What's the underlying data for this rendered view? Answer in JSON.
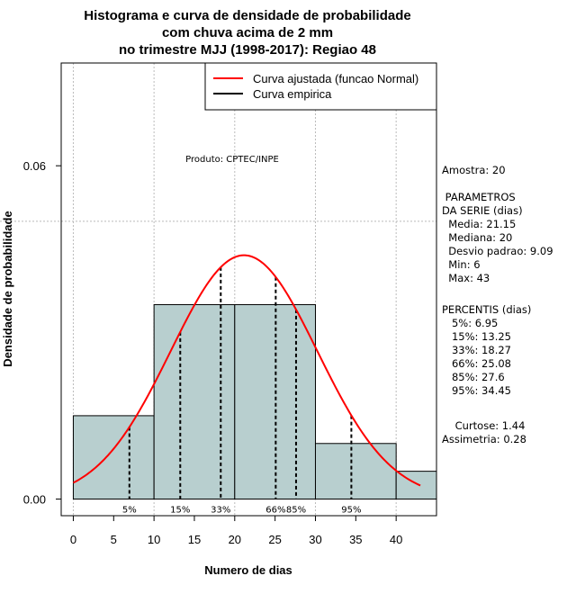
{
  "chart_data": {
    "type": "histogram",
    "title_lines": [
      "Histograma e curva de densidade de probabilidade",
      "com chuva acima de 2 mm",
      "no trimestre MJJ (1998-2017): Regiao 48"
    ],
    "xlabel": "Numero de dias",
    "ylabel": "Densidade de probabilidade",
    "xlim": [
      -1.5,
      45
    ],
    "ylim": [
      -0.003,
      0.0785
    ],
    "x_ticks": [
      0,
      5,
      10,
      15,
      20,
      25,
      30,
      35,
      40
    ],
    "y_ticks": [
      0.0,
      0.06
    ],
    "y_tick_labels": [
      "0.00",
      "0.06"
    ],
    "gridlines_x": [
      0,
      10,
      20,
      30,
      40
    ],
    "gridline_y": 0.05,
    "bins": [
      {
        "x0": 0,
        "x1": 10,
        "density": 0.015
      },
      {
        "x0": 10,
        "x1": 20,
        "density": 0.035
      },
      {
        "x0": 20,
        "x1": 30,
        "density": 0.035
      },
      {
        "x0": 30,
        "x1": 40,
        "density": 0.01
      },
      {
        "x0": 40,
        "x1": 45,
        "density": 0.005
      }
    ],
    "normal_curve": {
      "mean": 21.15,
      "sd": 9.09,
      "x_from": 0,
      "x_to": 43
    },
    "percentiles": [
      {
        "label": "5%",
        "x": 6.95
      },
      {
        "label": "15%",
        "x": 13.25
      },
      {
        "label": "33%",
        "x": 18.27
      },
      {
        "label": "66%",
        "x": 25.08
      },
      {
        "label": "85%",
        "x": 27.6
      },
      {
        "label": "95%",
        "x": 34.45
      }
    ],
    "legend": [
      {
        "label": "Curva ajustada (funcao Normal)",
        "color": "#ff0000"
      },
      {
        "label": "Curva empirica",
        "color": "#000000"
      }
    ],
    "produto": "Produto: CPTEC/INPE",
    "colors": {
      "bar_fill": "#b8cfcf",
      "curve": "#ff0000",
      "grid": "#bbbbbb"
    }
  },
  "stats": {
    "amostra": "Amostra: 20",
    "param_title1": " PARAMETROS",
    "param_title2": "DA SERIE (dias)",
    "media": "  Media: 21.15",
    "mediana": "  Mediana: 20",
    "desvio": "  Desvio padrao: 9.09",
    "min": "  Min: 6",
    "max": "  Max: 43",
    "perc_title": "PERCENTIS (dias)",
    "p5": "   5%: 6.95",
    "p15": "   15%: 13.25",
    "p33": "   33%: 18.27",
    "p66": "   66%: 25.08",
    "p85": "   85%: 27.6",
    "p95": "   95%: 34.45",
    "curtose": "    Curtose: 1.44",
    "assimetria": "Assimetria: 0.28"
  }
}
